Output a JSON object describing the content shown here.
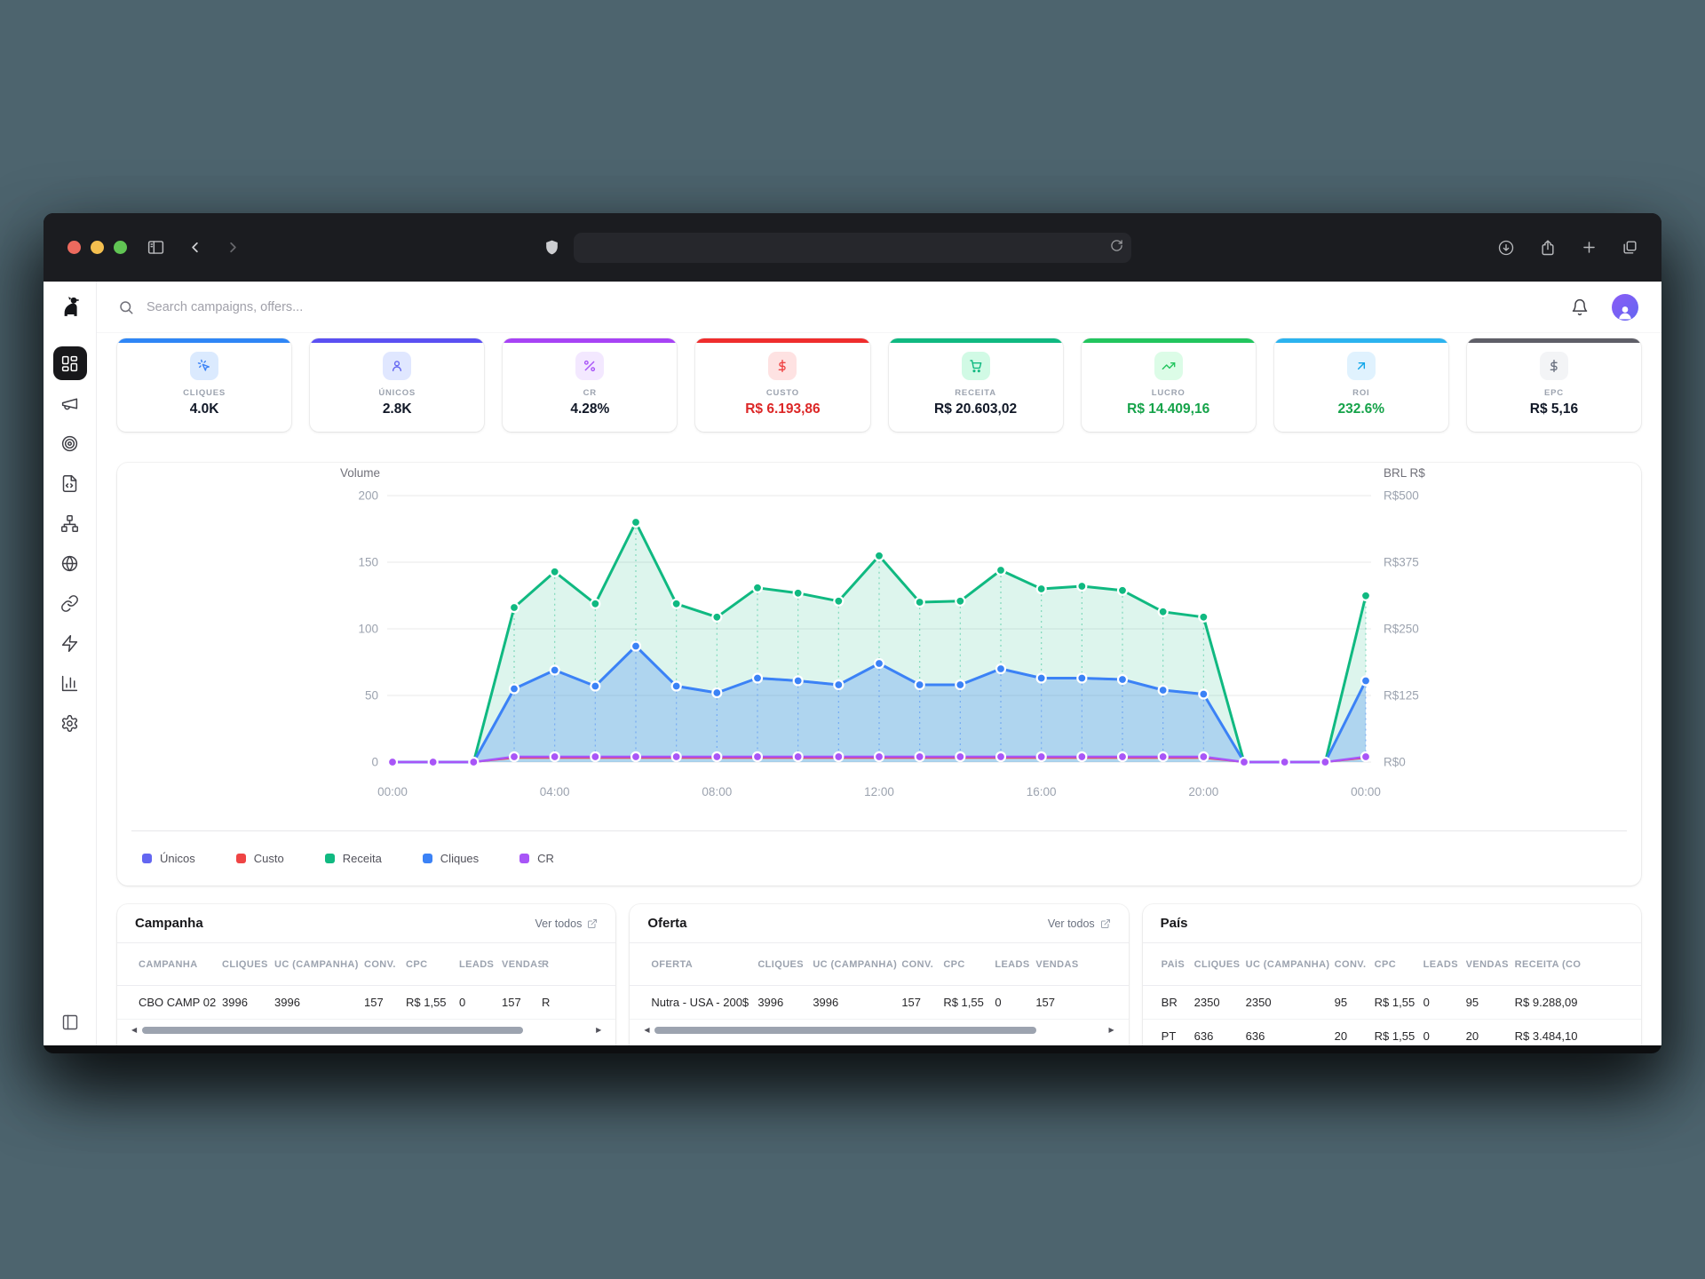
{
  "browser": {
    "traffic_lights": [
      "red",
      "yellow",
      "green"
    ],
    "toolbar_icons_left": [
      "panel-toggle-icon",
      "chevron-left-icon",
      "chevron-right-icon"
    ],
    "address_bar": {
      "value": "",
      "shield_icon": "shield-icon",
      "reload_icon": "reload-icon"
    },
    "toolbar_icons_right": [
      "download-icon",
      "share-icon",
      "new-tab-icon",
      "tabs-icon"
    ]
  },
  "app": {
    "logo_icon": "dog-logo",
    "sidebar_items": [
      {
        "icon": "dashboard-icon",
        "active": true
      },
      {
        "icon": "megaphone-icon",
        "active": false
      },
      {
        "icon": "target-icon",
        "active": false
      },
      {
        "icon": "file-code-icon",
        "active": false
      },
      {
        "icon": "network-icon",
        "active": false
      },
      {
        "icon": "globe-icon",
        "active": false
      },
      {
        "icon": "link-icon",
        "active": false
      },
      {
        "icon": "zap-icon",
        "active": false
      },
      {
        "icon": "bar-chart-icon",
        "active": false
      },
      {
        "icon": "settings-icon",
        "active": false
      }
    ],
    "sidebar_bottom_icon": "panel-left-icon",
    "header": {
      "search_placeholder": "Search campaigns, offers...",
      "bell_icon": "bell-icon",
      "avatar_icon": "user-avatar"
    }
  },
  "kpis": [
    {
      "label": "CLIQUES",
      "value": "4.0K",
      "accent": "#2f86f6",
      "icon": "click-icon",
      "tint": "#dbeafe",
      "icon_color": "#3b82f6",
      "value_color": "#111827"
    },
    {
      "label": "ÚNICOS",
      "value": "2.8K",
      "accent": "#5b50f2",
      "icon": "user-icon",
      "tint": "#e0e7ff",
      "icon_color": "#6366f1",
      "value_color": "#111827"
    },
    {
      "label": "CR",
      "value": "4.28%",
      "accent": "#a743f5",
      "icon": "percent-icon",
      "tint": "#f3e8ff",
      "icon_color": "#a855f7",
      "value_color": "#111827"
    },
    {
      "label": "CUSTO",
      "value": "R$ 6.193,86",
      "accent": "#ef2d2d",
      "icon": "dollar-icon",
      "tint": "#fee2e2",
      "icon_color": "#ef4444",
      "value_color": "#dc2626"
    },
    {
      "label": "RECEITA",
      "value": "R$ 20.603,02",
      "accent": "#10b981",
      "icon": "cart-icon",
      "tint": "#d1fae5",
      "icon_color": "#10b981",
      "value_color": "#111827"
    },
    {
      "label": "LUCRO",
      "value": "R$ 14.409,16",
      "accent": "#22c55e",
      "icon": "trending-up-icon",
      "tint": "#dcfce7",
      "icon_color": "#22c55e",
      "value_color": "#16a34a"
    },
    {
      "label": "ROI",
      "value": "232.6%",
      "accent": "#2cb3ef",
      "icon": "arrow-up-right-icon",
      "tint": "#e0f2fe",
      "icon_color": "#0ea5e9",
      "value_color": "#16a34a"
    },
    {
      "label": "EPC",
      "value": "R$ 5,16",
      "accent": "#5f5f68",
      "icon": "dollar-icon",
      "tint": "#f3f4f6",
      "icon_color": "#6b7280",
      "value_color": "#111827"
    }
  ],
  "chart_data": {
    "type": "area",
    "left_axis_title": "Volume",
    "right_axis_title": "BRL R$",
    "left_ticks": [
      0,
      50,
      100,
      150,
      200
    ],
    "right_tick_labels": [
      "R$0",
      "R$125",
      "R$250",
      "R$375",
      "R$500"
    ],
    "left_range": [
      0,
      200
    ],
    "right_range": [
      0,
      500
    ],
    "x_tick_labels": [
      "00:00",
      "04:00",
      "08:00",
      "12:00",
      "16:00",
      "20:00",
      "00:00"
    ],
    "points_per_tick": 4,
    "grid": true,
    "legend_position": "bottom",
    "series": [
      {
        "name": "Únicos",
        "color": "#6366f1",
        "axis": "left",
        "values": [
          0,
          0,
          0,
          55,
          69,
          57,
          87,
          57,
          52,
          63,
          61,
          58,
          74,
          58,
          58,
          70,
          63,
          63,
          62,
          54,
          51,
          0,
          0,
          0,
          61
        ]
      },
      {
        "name": "Custo",
        "color": "#ef4444",
        "axis": "right",
        "values": [
          0,
          0,
          0,
          8,
          8,
          8,
          8,
          8,
          8,
          8,
          8,
          8,
          8,
          8,
          8,
          8,
          8,
          8,
          8,
          8,
          8,
          0,
          0,
          0,
          8
        ]
      },
      {
        "name": "Receita",
        "color": "#10b981",
        "axis": "right",
        "values": [
          0,
          0,
          0,
          290,
          357,
          297,
          450,
          297,
          272,
          327,
          317,
          302,
          387,
          300,
          302,
          360,
          325,
          330,
          322,
          282,
          272,
          0,
          0,
          0,
          312
        ]
      },
      {
        "name": "Cliques",
        "color": "#3b82f6",
        "axis": "left",
        "values": [
          0,
          0,
          0,
          55,
          69,
          57,
          87,
          57,
          52,
          63,
          61,
          58,
          74,
          58,
          58,
          70,
          63,
          63,
          62,
          54,
          51,
          0,
          0,
          0,
          61
        ]
      },
      {
        "name": "CR",
        "color": "#a855f7",
        "axis": "left",
        "values": [
          0,
          0,
          0,
          4,
          4,
          4,
          4,
          4,
          4,
          4,
          4,
          4,
          4,
          4,
          4,
          4,
          4,
          4,
          4,
          4,
          4,
          0,
          0,
          0,
          4
        ]
      }
    ]
  },
  "tables": {
    "campanha": {
      "title": "Campanha",
      "link": "Ver todos",
      "headers": [
        "CAMPANHA",
        "CLIQUES",
        "UC (CAMPANHA)",
        "CONV.",
        "CPC",
        "LEADS",
        "VENDAS",
        "R"
      ],
      "rows": [
        [
          "CBO CAMP 02",
          "3996",
          "3996",
          "157",
          "R$ 1,55",
          "0",
          "157",
          "R"
        ]
      ]
    },
    "oferta": {
      "title": "Oferta",
      "link": "Ver todos",
      "headers": [
        "OFERTA",
        "CLIQUES",
        "UC (CAMPANHA)",
        "CONV.",
        "CPC",
        "LEADS",
        "VENDAS"
      ],
      "rows": [
        [
          "Nutra - USA - 200$",
          "3996",
          "3996",
          "157",
          "R$ 1,55",
          "0",
          "157"
        ]
      ]
    },
    "pais": {
      "title": "País",
      "headers": [
        "PAÍS",
        "CLIQUES",
        "UC (CAMPANHA)",
        "CONV.",
        "CPC",
        "LEADS",
        "VENDAS",
        "RECEITA (CO"
      ],
      "rows": [
        [
          "BR",
          "2350",
          "2350",
          "95",
          "R$ 1,55",
          "0",
          "95",
          "R$ 9.288,09"
        ],
        [
          "PT",
          "636",
          "636",
          "20",
          "R$ 1,55",
          "0",
          "20",
          "R$ 3.484,10"
        ]
      ]
    }
  }
}
